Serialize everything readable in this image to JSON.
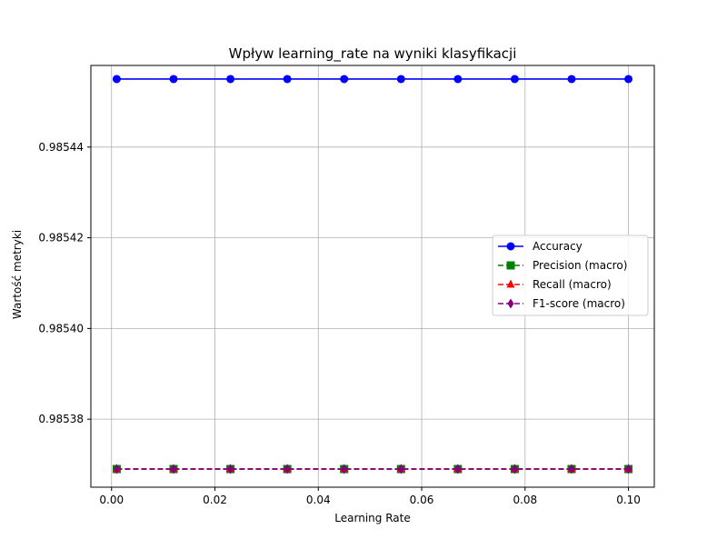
{
  "chart_data": {
    "type": "line",
    "title": "Wpływ learning_rate na wyniki klasyfikacji",
    "xlabel": "Learning Rate",
    "ylabel": "Wartość metryki",
    "x": [
      0.001,
      0.012,
      0.023,
      0.034,
      0.045,
      0.056,
      0.067,
      0.078,
      0.089,
      0.1
    ],
    "xlim": [
      -0.004,
      0.105
    ],
    "ylim": [
      0.985365,
      0.985458
    ],
    "xticks": [
      0.0,
      0.02,
      0.04,
      0.06,
      0.08,
      0.1
    ],
    "xtick_labels": [
      "0.00",
      "0.02",
      "0.04",
      "0.06",
      "0.08",
      "0.10"
    ],
    "yticks": [
      0.98538,
      0.9854,
      0.98542,
      0.98544
    ],
    "ytick_labels": [
      "0.98538",
      "0.98540",
      "0.98542",
      "0.98544"
    ],
    "grid": true,
    "legend_position": "center-right",
    "series": [
      {
        "name": "Accuracy",
        "values": [
          0.985455,
          0.985455,
          0.985455,
          0.985455,
          0.985455,
          0.985455,
          0.985455,
          0.985455,
          0.985455,
          0.985455
        ],
        "color": "#0000ff",
        "marker": "circle",
        "dash": "solid"
      },
      {
        "name": "Precision (macro)",
        "values": [
          0.985369,
          0.985369,
          0.985369,
          0.985369,
          0.985369,
          0.985369,
          0.985369,
          0.985369,
          0.985369,
          0.985369
        ],
        "color": "#008000",
        "marker": "square",
        "dash": "dashed"
      },
      {
        "name": "Recall (macro)",
        "values": [
          0.985369,
          0.985369,
          0.985369,
          0.985369,
          0.985369,
          0.985369,
          0.985369,
          0.985369,
          0.985369,
          0.985369
        ],
        "color": "#ff0000",
        "marker": "triangle",
        "dash": "dashed"
      },
      {
        "name": "F1-score (macro)",
        "values": [
          0.985369,
          0.985369,
          0.985369,
          0.985369,
          0.985369,
          0.985369,
          0.985369,
          0.985369,
          0.985369,
          0.985369
        ],
        "color": "#800080",
        "marker": "diamond",
        "dash": "dashed"
      }
    ]
  }
}
